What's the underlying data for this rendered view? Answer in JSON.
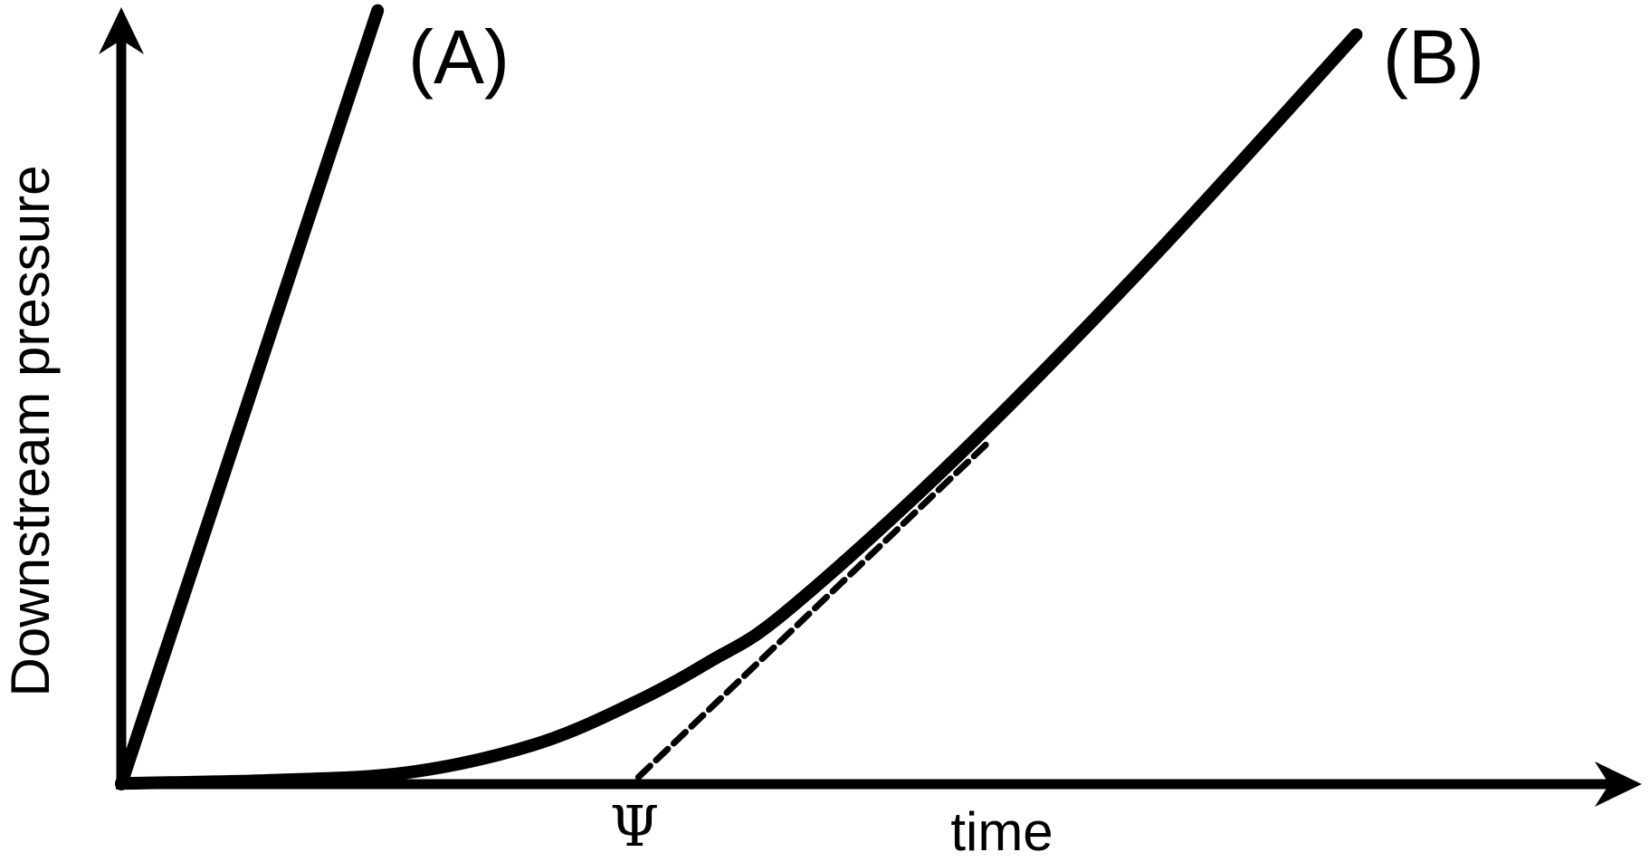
{
  "figure": {
    "background_color": "#ffffff",
    "ink_color": "#000000"
  },
  "labels": {
    "y_axis": "Downstream pressure",
    "x_axis": "time",
    "curve_a": "(A)",
    "curve_b": "(B)",
    "time_lag": "Ψ"
  },
  "chart_data": {
    "type": "line",
    "title": "",
    "xlabel": "time",
    "ylabel": "Downstream pressure",
    "x_range": [
      0,
      1
    ],
    "y_range": [
      0,
      1
    ],
    "grid": false,
    "axis_ticks": "none",
    "axis_style": "arrow-ended schematic axes, no tick labels",
    "legend_position": "inline labels beside curves",
    "series": [
      {
        "name": "(A)",
        "line_style": "solid",
        "points": [
          [
            0,
            0
          ],
          [
            0.17,
            0.998
          ]
        ]
      },
      {
        "name": "(B)",
        "line_style": "solid",
        "points": [
          [
            0,
            0.001
          ],
          [
            0.1,
            0.005
          ],
          [
            0.19,
            0.015
          ],
          [
            0.274,
            0.051
          ],
          [
            0.34,
            0.105
          ],
          [
            0.391,
            0.159
          ],
          [
            0.44,
            0.221
          ],
          [
            0.55,
            0.414
          ],
          [
            0.681,
            0.673
          ],
          [
            0.819,
            0.967
          ]
        ]
      },
      {
        "name": "tangent",
        "line_style": "dashed",
        "points": [
          [
            0.343,
            0.009
          ],
          [
            0.574,
            0.439
          ]
        ]
      }
    ],
    "annotations": [
      {
        "text": "Ψ",
        "x": 0.342,
        "y": 0
      }
    ]
  }
}
